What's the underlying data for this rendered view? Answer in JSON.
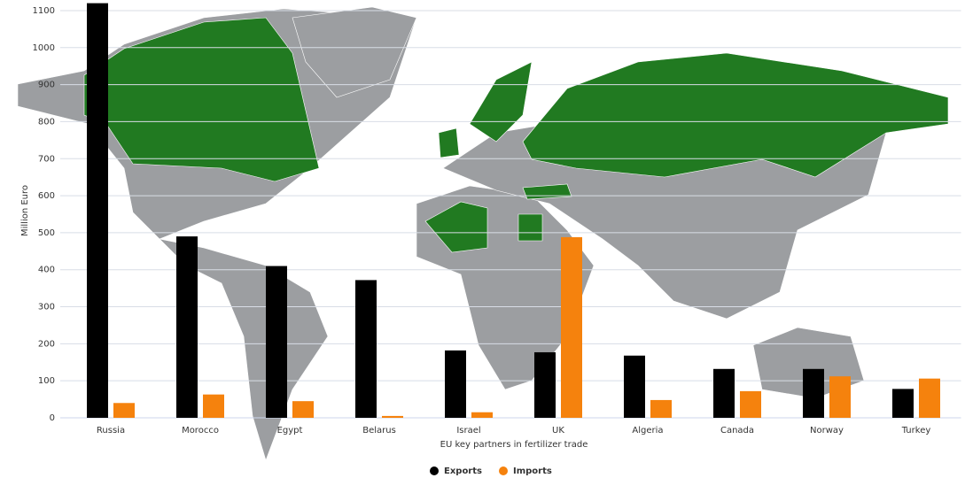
{
  "chart_data": {
    "type": "bar",
    "x_label": "EU key partners in fertilizer trade",
    "y_label": "Million Euro",
    "categories": [
      "Russia",
      "Morocco",
      "Egypt",
      "Belarus",
      "Israel",
      "UK",
      "Algeria",
      "Canada",
      "Norway",
      "Turkey"
    ],
    "series": [
      {
        "name": "Exports",
        "color": "#000000",
        "values": [
          1120,
          490,
          410,
          372,
          182,
          177,
          168,
          132,
          132,
          78
        ]
      },
      {
        "name": "Imports",
        "color": "#f5820d",
        "values": [
          40,
          63,
          45,
          5,
          15,
          488,
          48,
          72,
          112,
          106
        ]
      }
    ],
    "ylim": [
      0,
      1120
    ],
    "yticks": [
      0,
      100,
      200,
      300,
      400,
      500,
      600,
      700,
      800,
      900,
      1000,
      1100
    ],
    "grid": true,
    "legend": "bottom"
  }
}
